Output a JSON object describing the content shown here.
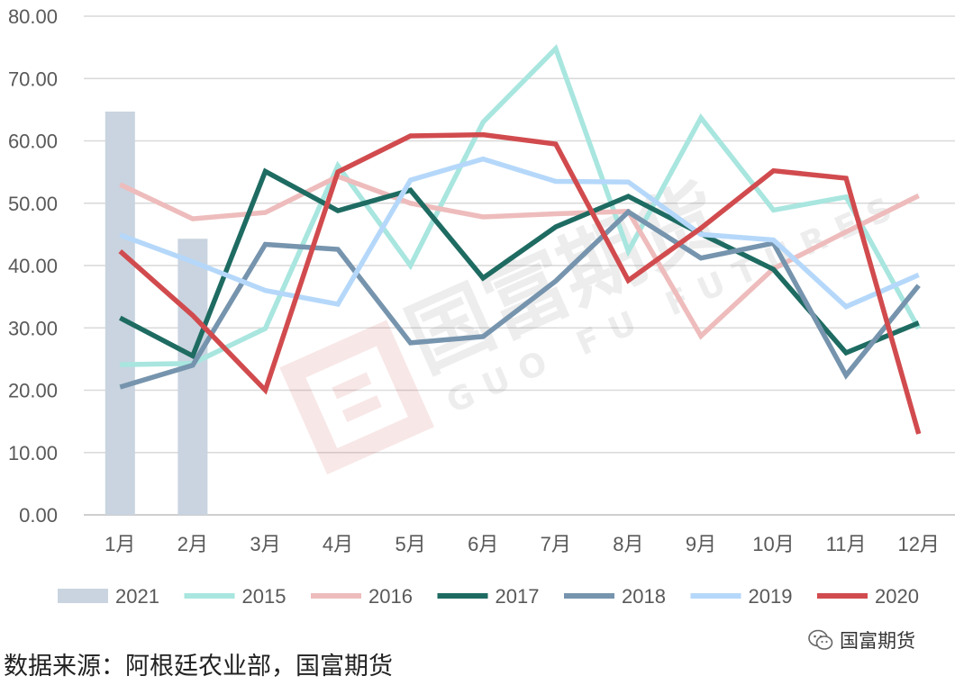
{
  "chart_data": {
    "type": "bar+line",
    "categories": [
      "1月",
      "2月",
      "3月",
      "4月",
      "5月",
      "6月",
      "7月",
      "8月",
      "9月",
      "10月",
      "11月",
      "12月"
    ],
    "ylim": [
      0,
      80
    ],
    "yticks": [
      "0.00",
      "10.00",
      "20.00",
      "30.00",
      "40.00",
      "50.00",
      "60.00",
      "70.00",
      "80.00"
    ],
    "grid": true,
    "legend_position": "bottom",
    "bar_series": [
      {
        "name": "2021",
        "color": "#c9d4e0",
        "values": [
          64.7,
          44.3
        ]
      }
    ],
    "line_series": [
      {
        "name": "2015",
        "color": "#a8e6df",
        "values": [
          24.1,
          24.3,
          29.9,
          56.0,
          40.0,
          63.0,
          74.8,
          42.3,
          63.7,
          48.9,
          51.0,
          29.9
        ]
      },
      {
        "name": "2016",
        "color": "#eebcbc",
        "values": [
          53.0,
          47.5,
          48.5,
          54.3,
          50.0,
          47.8,
          48.3,
          48.7,
          28.7,
          39.5,
          45.4,
          51.2
        ]
      },
      {
        "name": "2017",
        "color": "#1e6b62",
        "values": [
          31.6,
          25.5,
          55.1,
          48.8,
          52.1,
          38.0,
          46.2,
          51.1,
          45.1,
          39.4,
          26.0,
          30.8
        ]
      },
      {
        "name": "2018",
        "color": "#7694ad",
        "values": [
          20.5,
          24.0,
          43.4,
          42.6,
          27.6,
          28.6,
          37.5,
          48.6,
          41.2,
          43.6,
          22.4,
          36.8
        ]
      },
      {
        "name": "2019",
        "color": "#b5d8fa",
        "values": [
          44.9,
          40.6,
          36.0,
          33.8,
          53.7,
          57.1,
          53.5,
          53.4,
          45.0,
          44.1,
          33.4,
          38.5
        ]
      },
      {
        "name": "2020",
        "color": "#d14b4e",
        "values": [
          42.3,
          32.0,
          20.0,
          55.0,
          60.8,
          61.0,
          59.5,
          37.6,
          46.0,
          55.2,
          54.0,
          13.0
        ]
      }
    ]
  },
  "watermark": {
    "cn": "国富期货",
    "en": "GUO FU FUTURES"
  },
  "source_text": "数据来源：阿根廷农业部，国富期货",
  "wechat_label": "国富期货"
}
